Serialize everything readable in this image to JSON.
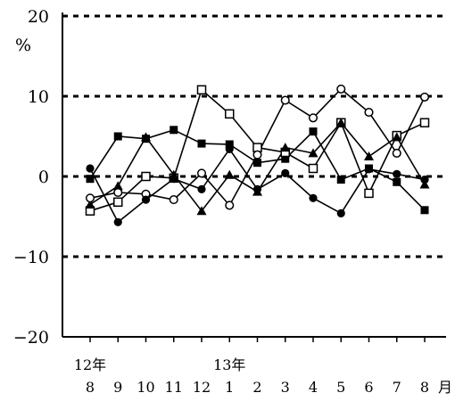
{
  "chart_data": {
    "type": "line",
    "unit": "%",
    "y_range": [
      -20,
      20
    ],
    "y_ticks": [
      20,
      10,
      0,
      -10,
      -20
    ],
    "dashed_gridlines_at": [
      20,
      10,
      0,
      -10
    ],
    "categories": [
      "8",
      "9",
      "10",
      "11",
      "12",
      "1",
      "2",
      "3",
      "4",
      "5",
      "6",
      "7",
      "8"
    ],
    "month_suffix": "月",
    "year_labels": [
      {
        "text": "12年",
        "category_index": 0
      },
      {
        "text": "13年",
        "category_index": 5
      }
    ],
    "series": [
      {
        "marker": "filled-square",
        "values": [
          -0.3,
          5.0,
          4.7,
          5.8,
          4.1,
          4.0,
          1.7,
          2.2,
          5.6,
          -0.4,
          1.0,
          -0.7,
          -4.2
        ]
      },
      {
        "marker": "open-square",
        "values": [
          -4.3,
          -3.2,
          0.0,
          -0.2,
          10.8,
          7.8,
          3.6,
          3.0,
          1.0,
          6.7,
          -2.1,
          5.1,
          6.7
        ]
      },
      {
        "marker": "filled-triangle",
        "values": [
          -3.5,
          -1.2,
          4.9,
          0.2,
          -4.3,
          0.2,
          -1.9,
          3.6,
          2.9,
          6.7,
          2.5,
          4.9,
          -1.0
        ]
      },
      {
        "marker": "open-circle",
        "values": [
          -2.7,
          -2.0,
          -2.2,
          -2.9,
          0.4,
          -3.6,
          2.7,
          9.5,
          7.3,
          10.9,
          8.0,
          2.9,
          9.9
        ]
      },
      {
        "marker": "filled-circle",
        "values": [
          1.0,
          -5.7,
          -2.9,
          -0.3,
          -1.6,
          3.4,
          -1.6,
          0.4,
          -2.7,
          -4.6,
          0.9,
          0.3,
          -0.4
        ]
      }
    ]
  }
}
